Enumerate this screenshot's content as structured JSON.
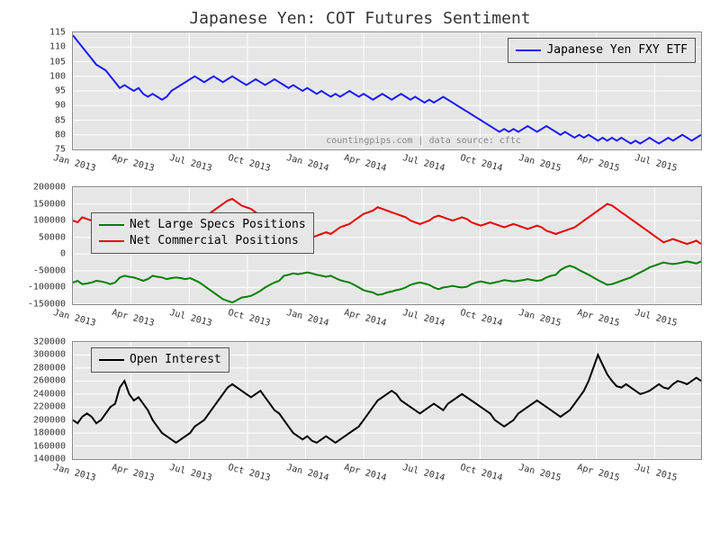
{
  "title": "Japanese Yen: COT Futures Sentiment",
  "watermark": "countingpips.com | data source: cftc",
  "background_color": "#ffffff",
  "panel_background": "#e6e6e6",
  "grid_color": "#ffffff",
  "x_labels": [
    "Jan 2013",
    "Apr 2013",
    "Jul 2013",
    "Oct 2013",
    "Jan 2014",
    "Apr 2014",
    "Jul 2014",
    "Oct 2014",
    "Jan 2015",
    "Apr 2015",
    "Jul 2015"
  ],
  "panel1": {
    "type": "line",
    "ylim": [
      75,
      115
    ],
    "ytick_step": 5,
    "y_ticks": [
      75,
      80,
      85,
      90,
      95,
      100,
      105,
      110,
      115
    ],
    "legend": [
      {
        "label": "Japanese Yen FXY ETF",
        "color": "#1a1aff"
      }
    ],
    "legend_pos": "top-right",
    "series": [
      {
        "name": "fxy",
        "color": "#1a1aff",
        "stroke_width": 2,
        "data": [
          114,
          112,
          110,
          108,
          106,
          104,
          103,
          102,
          100,
          98,
          96,
          97,
          96,
          95,
          96,
          94,
          93,
          94,
          93,
          92,
          93,
          95,
          96,
          97,
          98,
          99,
          100,
          99,
          98,
          99,
          100,
          99,
          98,
          99,
          100,
          99,
          98,
          97,
          98,
          99,
          98,
          97,
          98,
          99,
          98,
          97,
          96,
          97,
          96,
          95,
          96,
          95,
          94,
          95,
          94,
          93,
          94,
          93,
          94,
          95,
          94,
          93,
          94,
          93,
          92,
          93,
          94,
          93,
          92,
          93,
          94,
          93,
          92,
          93,
          92,
          91,
          92,
          91,
          92,
          93,
          92,
          91,
          90,
          89,
          88,
          87,
          86,
          85,
          84,
          83,
          82,
          81,
          82,
          81,
          82,
          81,
          82,
          83,
          82,
          81,
          82,
          83,
          82,
          81,
          80,
          81,
          80,
          79,
          80,
          79,
          80,
          79,
          78,
          79,
          78,
          79,
          78,
          79,
          78,
          77,
          78,
          77,
          78,
          79,
          78,
          77,
          78,
          79,
          78,
          79,
          80,
          79,
          78,
          79,
          80
        ]
      }
    ]
  },
  "panel2": {
    "type": "line",
    "ylim": [
      -150000,
      200000
    ],
    "ytick_step": 50000,
    "y_ticks": [
      -150000,
      -100000,
      -50000,
      0,
      50000,
      100000,
      150000,
      200000
    ],
    "legend": [
      {
        "label": "Net Large Specs Positions",
        "color": "#008000"
      },
      {
        "label": "Net Commercial Positions",
        "color": "#e60000"
      }
    ],
    "legend_pos": "upper-left",
    "series": [
      {
        "name": "commercial",
        "color": "#e60000",
        "stroke_width": 2,
        "data": [
          100000,
          95000,
          110000,
          105000,
          100000,
          90000,
          95000,
          100000,
          105000,
          100000,
          80000,
          70000,
          75000,
          80000,
          85000,
          90000,
          85000,
          70000,
          75000,
          80000,
          85000,
          80000,
          75000,
          80000,
          85000,
          80000,
          90000,
          100000,
          110000,
          120000,
          130000,
          140000,
          150000,
          160000,
          165000,
          155000,
          145000,
          140000,
          135000,
          125000,
          115000,
          105000,
          95000,
          85000,
          80000,
          60000,
          55000,
          50000,
          55000,
          50000,
          45000,
          50000,
          55000,
          60000,
          65000,
          60000,
          70000,
          80000,
          85000,
          90000,
          100000,
          110000,
          120000,
          125000,
          130000,
          140000,
          135000,
          130000,
          125000,
          120000,
          115000,
          110000,
          100000,
          95000,
          90000,
          95000,
          100000,
          110000,
          115000,
          110000,
          105000,
          100000,
          105000,
          110000,
          105000,
          95000,
          90000,
          85000,
          90000,
          95000,
          90000,
          85000,
          80000,
          85000,
          90000,
          85000,
          80000,
          75000,
          80000,
          85000,
          80000,
          70000,
          65000,
          60000,
          65000,
          70000,
          75000,
          80000,
          90000,
          100000,
          110000,
          120000,
          130000,
          140000,
          150000,
          145000,
          135000,
          125000,
          115000,
          105000,
          95000,
          85000,
          75000,
          65000,
          55000,
          45000,
          35000,
          40000,
          45000,
          40000,
          35000,
          30000,
          35000,
          40000,
          30000
        ]
      },
      {
        "name": "specs",
        "color": "#008000",
        "stroke_width": 2,
        "data": [
          -85000,
          -80000,
          -90000,
          -88000,
          -85000,
          -80000,
          -82000,
          -85000,
          -90000,
          -85000,
          -70000,
          -65000,
          -68000,
          -70000,
          -75000,
          -80000,
          -75000,
          -65000,
          -68000,
          -70000,
          -75000,
          -72000,
          -70000,
          -72000,
          -75000,
          -72000,
          -78000,
          -85000,
          -95000,
          -105000,
          -115000,
          -125000,
          -135000,
          -140000,
          -145000,
          -138000,
          -130000,
          -128000,
          -125000,
          -118000,
          -110000,
          -100000,
          -92000,
          -85000,
          -80000,
          -65000,
          -62000,
          -58000,
          -60000,
          -58000,
          -55000,
          -58000,
          -62000,
          -65000,
          -68000,
          -65000,
          -72000,
          -78000,
          -82000,
          -85000,
          -92000,
          -100000,
          -108000,
          -112000,
          -115000,
          -122000,
          -120000,
          -115000,
          -112000,
          -108000,
          -105000,
          -100000,
          -92000,
          -88000,
          -85000,
          -88000,
          -92000,
          -100000,
          -105000,
          -100000,
          -98000,
          -95000,
          -98000,
          -100000,
          -98000,
          -90000,
          -85000,
          -82000,
          -85000,
          -88000,
          -85000,
          -82000,
          -78000,
          -80000,
          -82000,
          -80000,
          -78000,
          -75000,
          -78000,
          -80000,
          -78000,
          -70000,
          -65000,
          -62000,
          -48000,
          -40000,
          -35000,
          -40000,
          -48000,
          -55000,
          -62000,
          -70000,
          -78000,
          -85000,
          -92000,
          -90000,
          -85000,
          -80000,
          -75000,
          -70000,
          -62000,
          -55000,
          -48000,
          -40000,
          -35000,
          -30000,
          -25000,
          -28000,
          -30000,
          -28000,
          -25000,
          -22000,
          -25000,
          -28000,
          -22000
        ]
      }
    ]
  },
  "panel3": {
    "type": "line",
    "ylim": [
      140000,
      320000
    ],
    "ytick_step": 20000,
    "y_ticks": [
      140000,
      160000,
      180000,
      200000,
      220000,
      240000,
      260000,
      280000,
      300000,
      320000
    ],
    "legend": [
      {
        "label": "Open Interest",
        "color": "#000000"
      }
    ],
    "legend_pos": "upper-left",
    "series": [
      {
        "name": "oi",
        "color": "#000000",
        "stroke_width": 2,
        "data": [
          200000,
          195000,
          205000,
          210000,
          205000,
          195000,
          200000,
          210000,
          220000,
          225000,
          250000,
          260000,
          240000,
          230000,
          235000,
          225000,
          215000,
          200000,
          190000,
          180000,
          175000,
          170000,
          165000,
          170000,
          175000,
          180000,
          190000,
          195000,
          200000,
          210000,
          220000,
          230000,
          240000,
          250000,
          255000,
          250000,
          245000,
          240000,
          235000,
          240000,
          245000,
          235000,
          225000,
          215000,
          210000,
          200000,
          190000,
          180000,
          175000,
          170000,
          175000,
          168000,
          165000,
          170000,
          175000,
          170000,
          165000,
          170000,
          175000,
          180000,
          185000,
          190000,
          200000,
          210000,
          220000,
          230000,
          235000,
          240000,
          245000,
          240000,
          230000,
          225000,
          220000,
          215000,
          210000,
          215000,
          220000,
          225000,
          220000,
          215000,
          225000,
          230000,
          235000,
          240000,
          235000,
          230000,
          225000,
          220000,
          215000,
          210000,
          200000,
          195000,
          190000,
          195000,
          200000,
          210000,
          215000,
          220000,
          225000,
          230000,
          225000,
          220000,
          215000,
          210000,
          205000,
          210000,
          215000,
          225000,
          235000,
          245000,
          260000,
          280000,
          300000,
          285000,
          270000,
          260000,
          252000,
          250000,
          255000,
          250000,
          245000,
          240000,
          242000,
          245000,
          250000,
          255000,
          250000,
          248000,
          255000,
          260000,
          258000,
          255000,
          260000,
          265000,
          260000
        ]
      }
    ]
  }
}
